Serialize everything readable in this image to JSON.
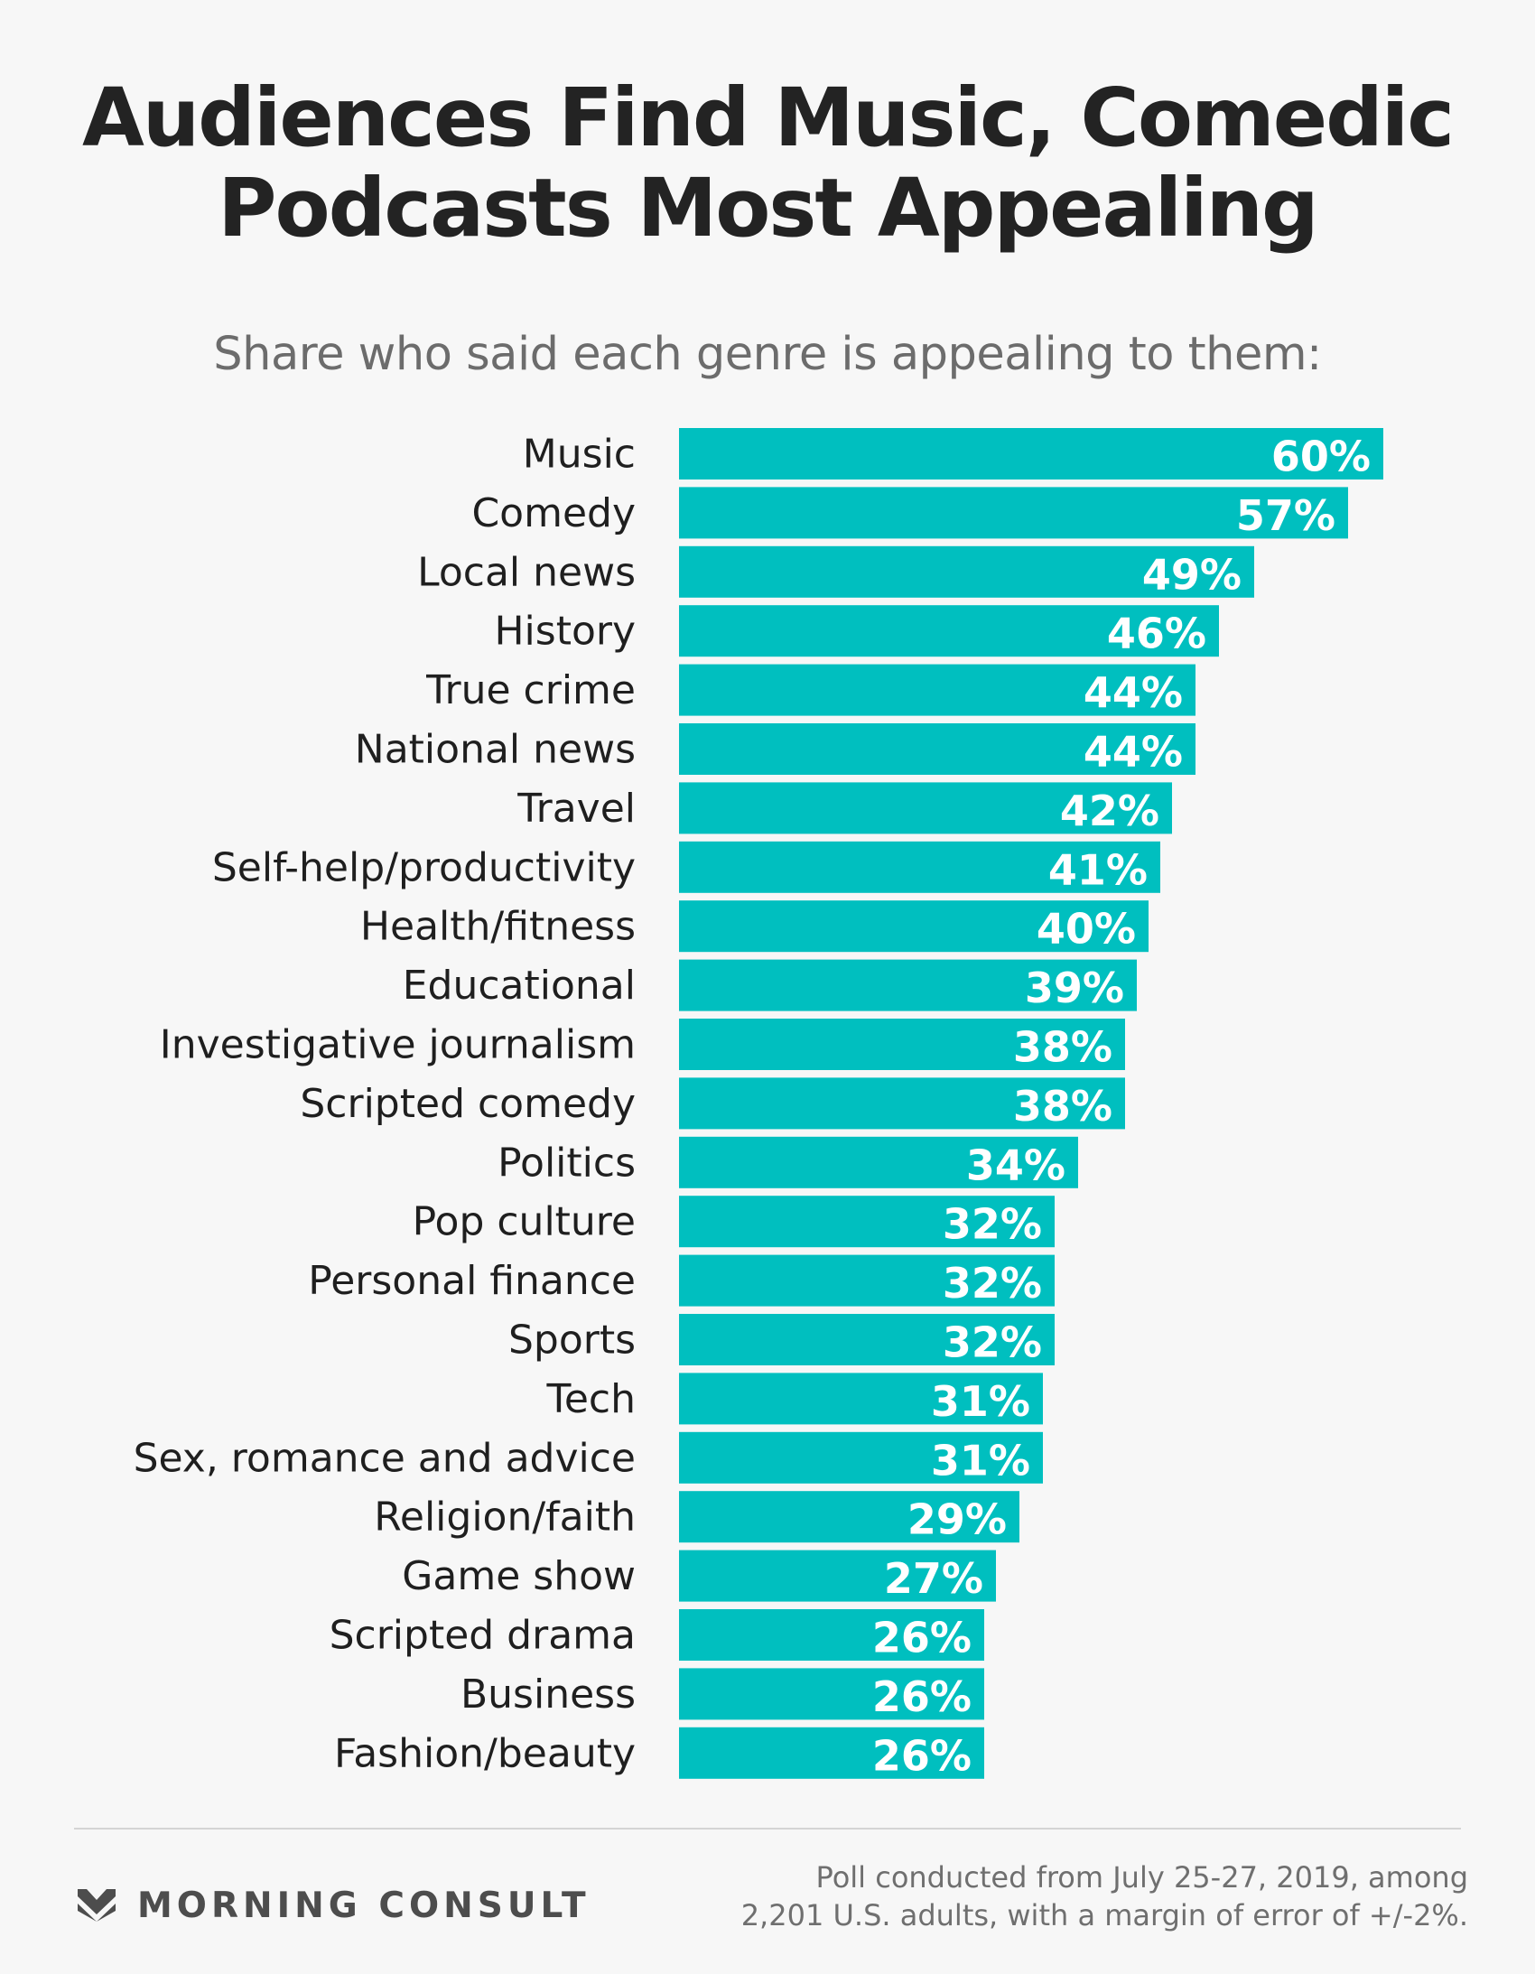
{
  "chart_data": {
    "type": "bar",
    "orientation": "horizontal",
    "title": [
      "Audiences Find Music, Comedic",
      "Podcasts Most Appealing"
    ],
    "subtitle": "Share who said each genre is appealing to them:",
    "categories": [
      "Music",
      "Comedy",
      "Local news",
      "History",
      "True crime",
      "National news",
      "Travel",
      "Self-help/productivity",
      "Health/fitness",
      "Educational",
      "Investigative journalism",
      "Scripted comedy",
      "Politics",
      "Pop culture",
      "Personal finance",
      "Sports",
      "Tech",
      "Sex, romance and advice",
      "Religion/faith",
      "Game show",
      "Scripted drama",
      "Business",
      "Fashion/beauty"
    ],
    "values": [
      60,
      57,
      49,
      46,
      44,
      44,
      42,
      41,
      40,
      39,
      38,
      38,
      34,
      32,
      32,
      32,
      31,
      31,
      29,
      27,
      26,
      26,
      26
    ],
    "value_labels": [
      "60%",
      "57%",
      "49%",
      "46%",
      "44%",
      "44%",
      "42%",
      "41%",
      "40%",
      "39%",
      "38%",
      "38%",
      "34%",
      "32%",
      "32%",
      "32%",
      "31%",
      "31%",
      "29%",
      "27%",
      "26%",
      "26%",
      "26%"
    ],
    "unit": "%",
    "xlim": [
      0,
      60
    ],
    "grid": false,
    "legend": "none",
    "bar_color": "#00bfbf",
    "label_color": "#ffffff"
  },
  "footer": {
    "brand": "MORNING CONSULT",
    "brand_icon": "morning-consult-chevron-logo",
    "note": [
      "Poll conducted from July 25-27, 2019, among",
      "2,201 U.S. adults, with a margin of error of +/-2%."
    ]
  }
}
